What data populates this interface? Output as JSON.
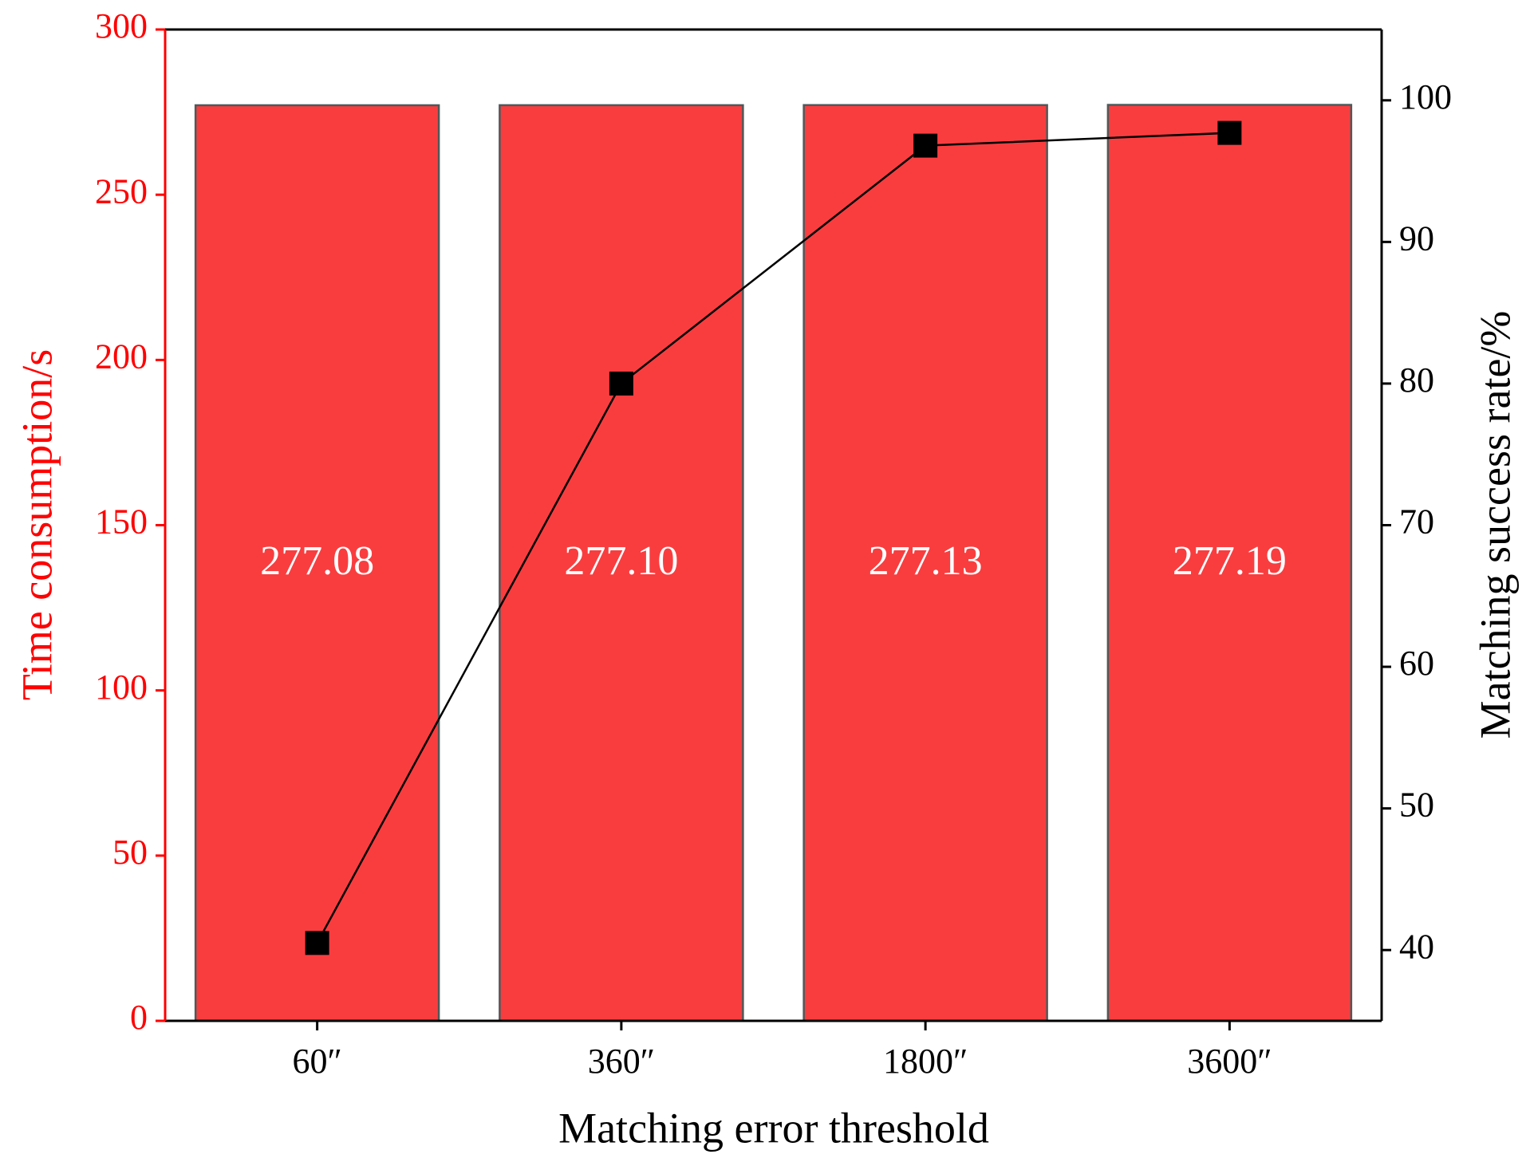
{
  "chart_data": {
    "type": "bar",
    "x_label": "Matching error threshold",
    "y_label": "Time consumption/s",
    "y2_label": "Matching success rate/%",
    "categories": [
      "60″",
      "360″",
      "1800″",
      "3600″"
    ],
    "series": [
      {
        "name": "Time consumption",
        "type": "bar",
        "color": "#f93d3f",
        "values": [
          277.08,
          277.1,
          277.13,
          277.19
        ],
        "value_labels": [
          "277.08",
          "277.10",
          "277.13",
          "277.19"
        ]
      },
      {
        "name": "Matching success rate",
        "type": "line",
        "axis": "y2",
        "color": "#000000",
        "values": [
          40.5,
          80.0,
          96.8,
          97.7
        ]
      }
    ],
    "ylim": [
      0,
      300
    ],
    "yticks": [
      0,
      50,
      100,
      150,
      200,
      250,
      300
    ],
    "y2lim": [
      35,
      105
    ],
    "y2ticks": [
      40,
      50,
      60,
      70,
      80,
      90,
      100
    ],
    "y_axis_color": "#ff0000"
  }
}
